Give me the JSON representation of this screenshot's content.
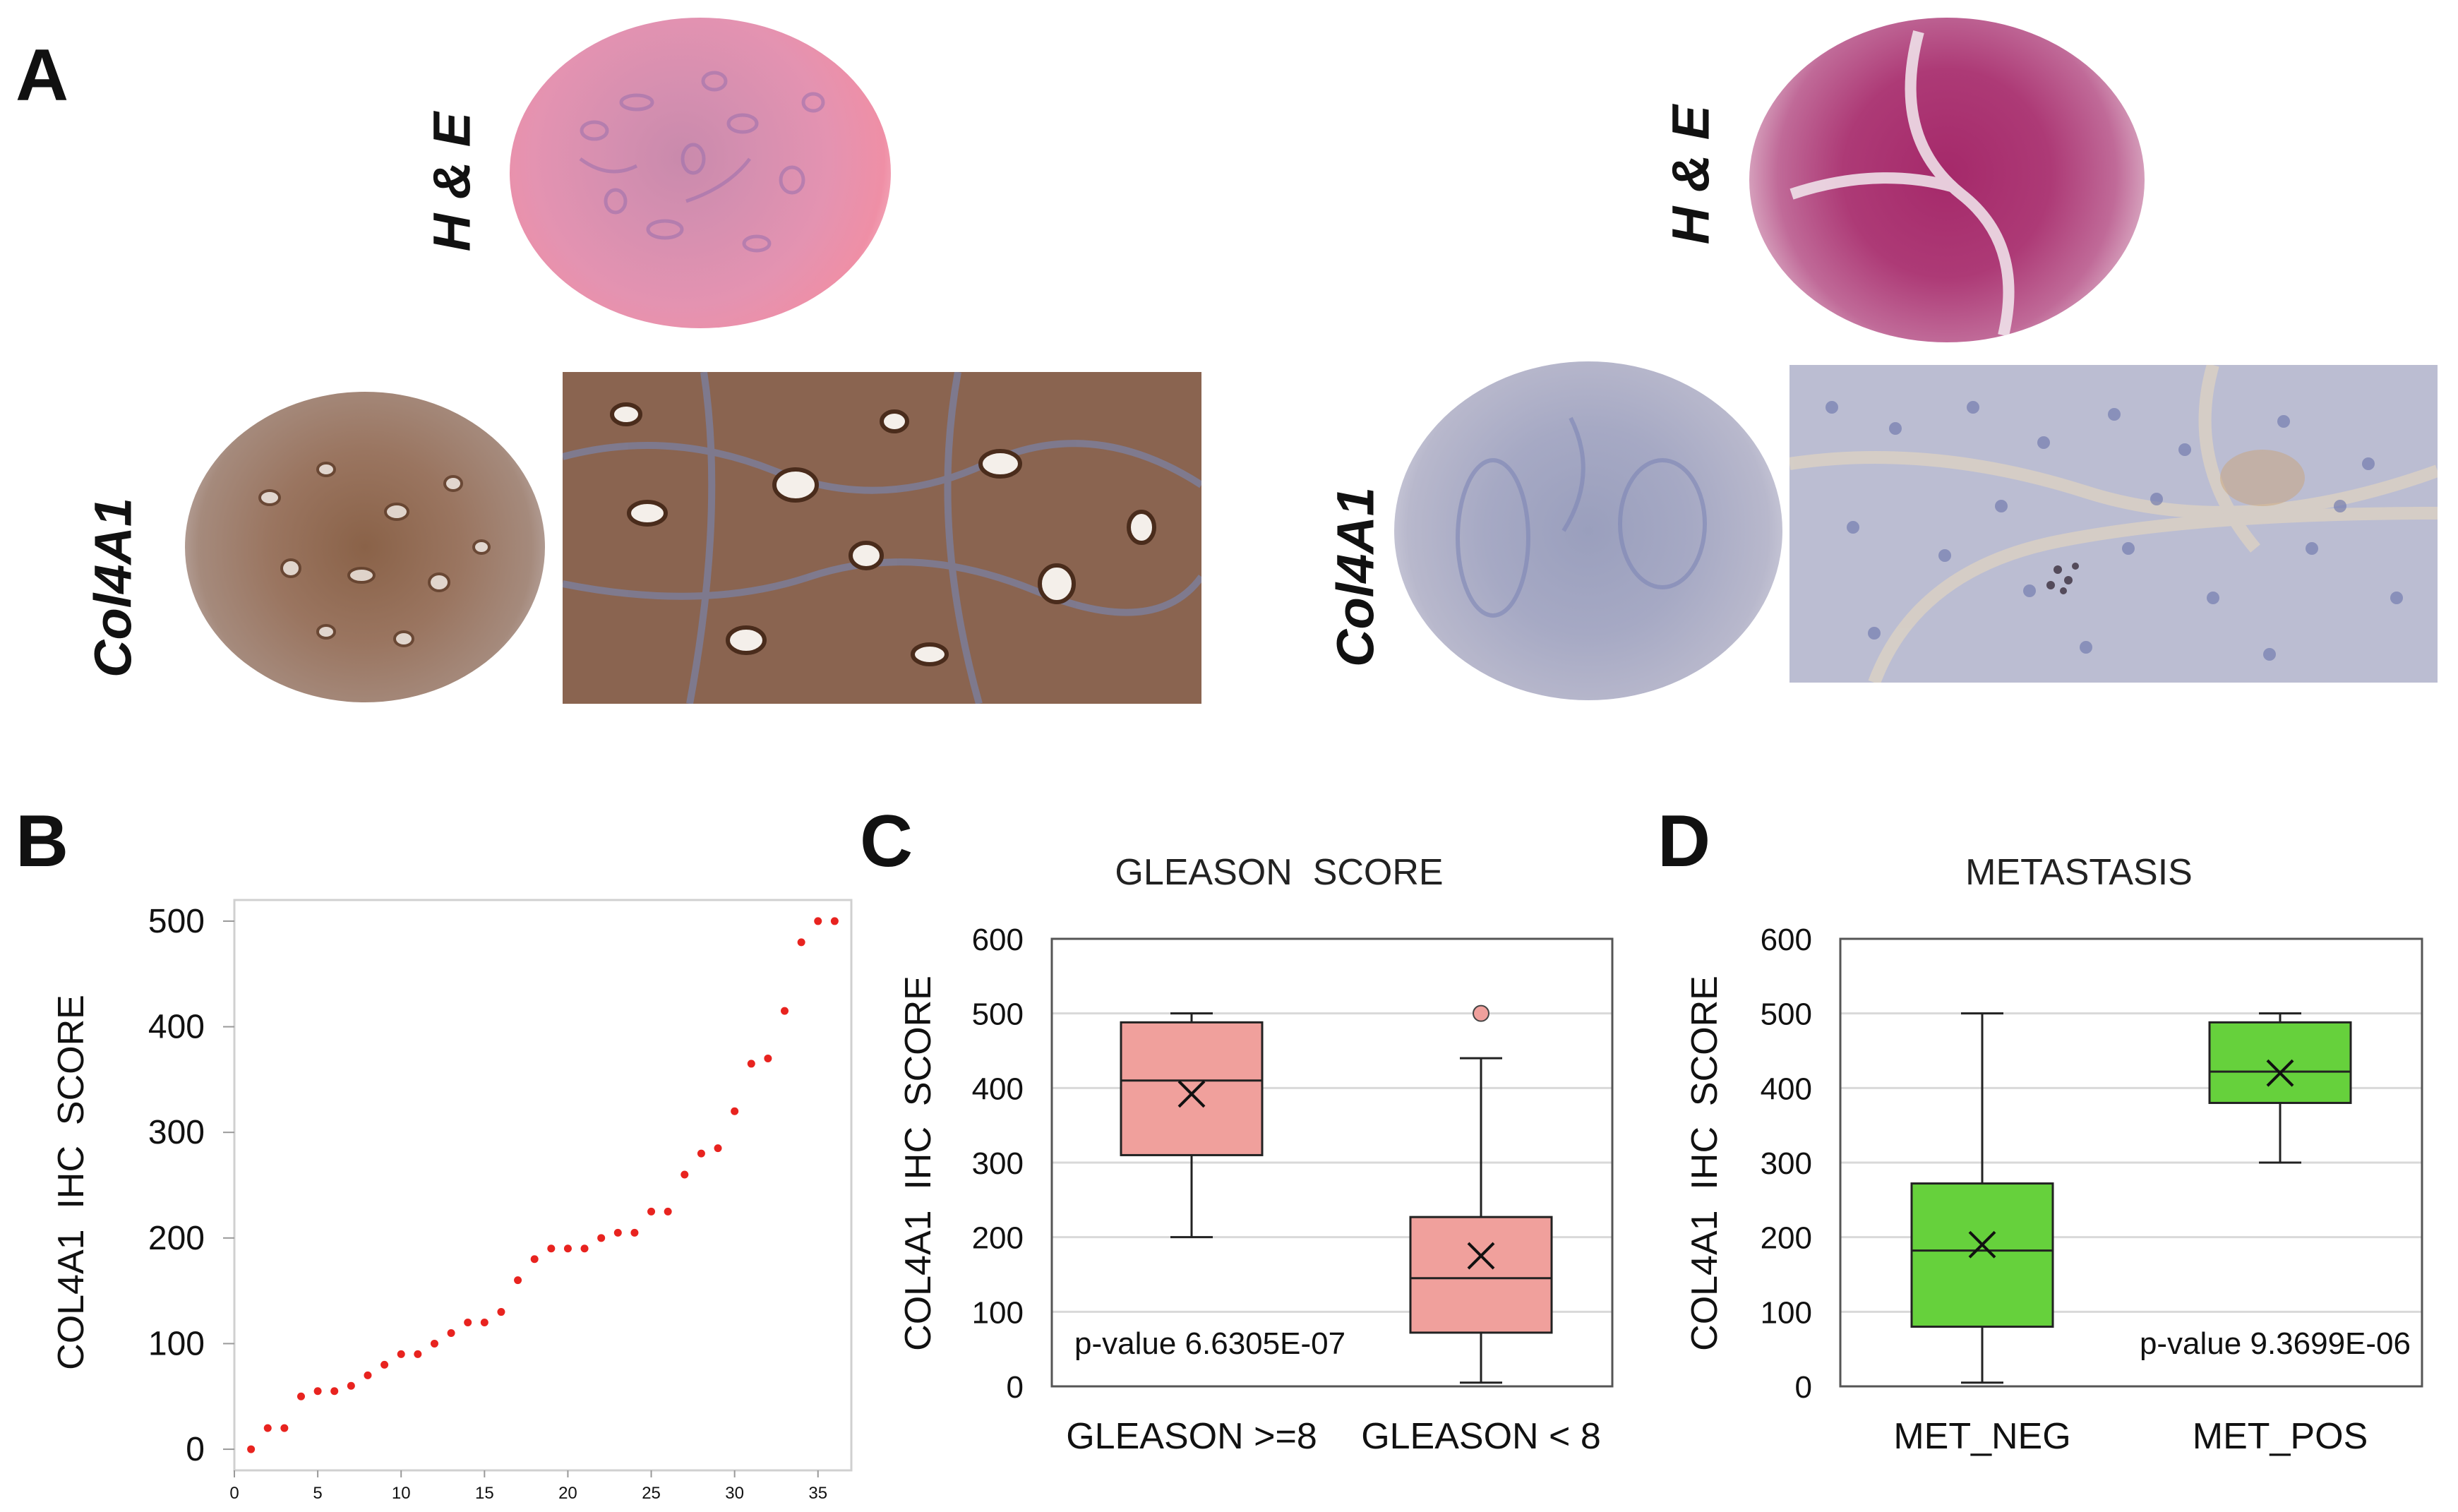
{
  "panel_a": {
    "letter": "A",
    "label_he": "H & E",
    "label_col": "Col4A1",
    "images": {
      "left_he": "H&E stained tissue core (high COL4A1 case)",
      "left_col_core": "Col4A1 IHC core",
      "left_col_zoom": "Col4A1 IHC magnified",
      "right_he": "H&E stained tissue core (low COL4A1 case)",
      "right_col_core": "Col4A1 IHC core",
      "right_col_zoom": "Col4A1 IHC magnified"
    }
  },
  "colors": {
    "scatter_point": "#e8231f",
    "gleason_box": "#f0a09c",
    "metastasis_box": "#66d13c",
    "grid": "#d9d9d9",
    "axis": "#333333"
  },
  "chart_data": [
    {
      "id": "B",
      "letter": "B",
      "type": "scatter",
      "title": "",
      "xlabel": "",
      "ylabel": "COL4A1  IHC  SCORE",
      "xlim": [
        0,
        37
      ],
      "ylim": [
        -20,
        520
      ],
      "xticks": [
        0,
        5,
        10,
        15,
        20,
        25,
        30,
        35
      ],
      "yticks": [
        0,
        100,
        200,
        300,
        400,
        500
      ],
      "x": [
        1,
        2,
        3,
        4,
        5,
        6,
        7,
        8,
        9,
        10,
        11,
        12,
        13,
        14,
        15,
        16,
        17,
        18,
        19,
        20,
        21,
        22,
        23,
        24,
        25,
        26,
        27,
        28,
        29,
        30,
        31,
        32,
        33,
        34,
        35,
        36
      ],
      "y": [
        0,
        20,
        20,
        50,
        55,
        55,
        60,
        70,
        80,
        90,
        90,
        100,
        110,
        120,
        120,
        130,
        160,
        180,
        190,
        190,
        190,
        200,
        205,
        205,
        225,
        225,
        260,
        280,
        285,
        320,
        365,
        370,
        415,
        480,
        500,
        500
      ]
    },
    {
      "id": "C",
      "letter": "C",
      "type": "box",
      "title": "GLEASON  SCORE",
      "ylabel": "COL4A1  IHC  SCORE",
      "ylim": [
        0,
        600
      ],
      "yticks": [
        0,
        100,
        200,
        300,
        400,
        500,
        600
      ],
      "annotation": "p-value 6.6305E-07",
      "categories": [
        "GLEASON >=8",
        "GLEASON < 8"
      ],
      "boxes": [
        {
          "min": 200,
          "q1": 310,
          "median": 410,
          "q3": 488,
          "max": 500,
          "mean": 392,
          "outliers": []
        },
        {
          "min": 5,
          "q1": 72,
          "median": 145,
          "q3": 227,
          "max": 440,
          "mean": 175,
          "outliers": [
            500
          ]
        }
      ]
    },
    {
      "id": "D",
      "letter": "D",
      "type": "box",
      "title": "METASTASIS",
      "ylabel": "COL4A1  IHC  SCORE",
      "ylim": [
        0,
        600
      ],
      "yticks": [
        0,
        100,
        200,
        300,
        400,
        500,
        600
      ],
      "annotation": "p-value 9.3699E-06",
      "categories": [
        "MET_NEG",
        "MET_POS"
      ],
      "boxes": [
        {
          "min": 5,
          "q1": 80,
          "median": 182,
          "q3": 272,
          "max": 500,
          "mean": 190,
          "outliers": []
        },
        {
          "min": 300,
          "q1": 380,
          "median": 422,
          "q3": 488,
          "max": 500,
          "mean": 420,
          "outliers": []
        }
      ]
    }
  ]
}
